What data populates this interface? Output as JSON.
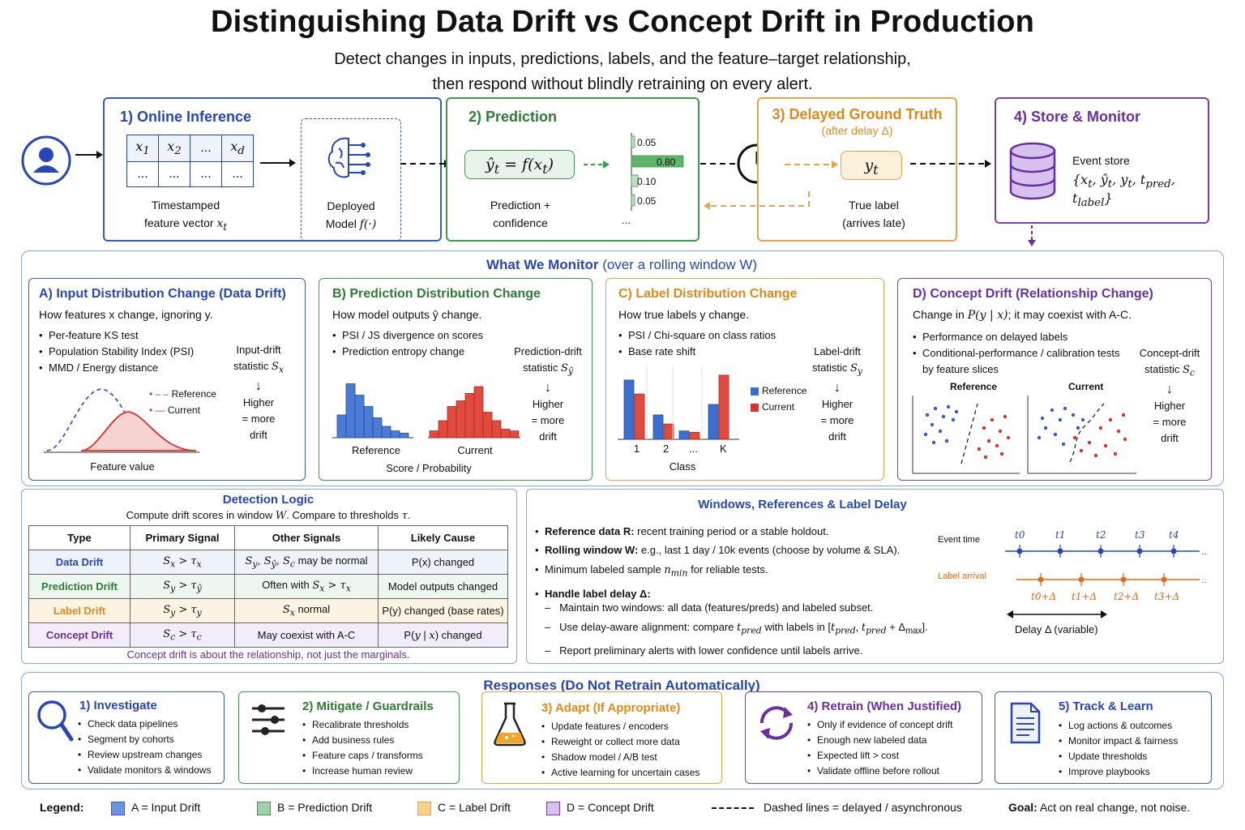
{
  "title": "Distinguishing Data Drift vs Concept Drift in Production",
  "subtitle_line1": "Detect changes in inputs, predictions, labels, and the feature–target relationship,",
  "subtitle_line2": "then respond without blindly retraining on every alert.",
  "colors": {
    "blue": "#3a5bc7",
    "green": "#3f9a4e",
    "orange": "#e8a44a",
    "purple": "#7a3fb0",
    "red": "#d9342b"
  },
  "pipeline": {
    "online": {
      "title": "1) Online Inference",
      "headers": [
        "x1",
        "x2",
        "...",
        "xd"
      ],
      "row": [
        "...",
        "...",
        "...",
        "..."
      ],
      "caption1": "Timestamped",
      "caption2": "feature vector",
      "caption_var": "xt",
      "model_caption1": "Deployed",
      "model_caption2": "Model",
      "model_var": "f(·)"
    },
    "prediction": {
      "title": "2) Prediction",
      "formula": "ŷt = f(xt)",
      "caption1": "Prediction +",
      "caption2": "confidence",
      "bars": [
        0.05,
        0.8,
        0.1,
        0.05
      ],
      "bar_labels": [
        "0.05",
        "0.80",
        "0.10",
        "0.05"
      ],
      "ellipsis": "..."
    },
    "ground_truth": {
      "title": "3) Delayed Ground Truth",
      "subtitle": "(after delay Δ)",
      "label": "yt",
      "caption1": "True label",
      "caption2": "(arrives late)"
    },
    "store": {
      "title": "4) Store & Monitor",
      "caption": "Event store",
      "set": "{xt, ŷt, yt, tpred, tlabel}"
    }
  },
  "monitor": {
    "title": "What We Monitor",
    "title_suffix": "(over a rolling window W)",
    "panels": [
      {
        "title": "A) Input Distribution Change (Data Drift)",
        "desc": "How features x change, ignoring y.",
        "bullets": [
          "Per-feature KS test",
          "Population Stability Index (PSI)",
          "MMD / Energy distance"
        ],
        "stat1": "Input-drift",
        "stat2": "statistic Sx",
        "higher": [
          "Higher",
          "= more",
          "drift"
        ],
        "legend": [
          "Reference",
          "Current"
        ],
        "xlabel": "Feature value"
      },
      {
        "title": "B) Prediction Distribution Change",
        "desc": "How model outputs ŷ change.",
        "bullets": [
          "PSI / JS divergence on scores",
          "Prediction entropy change"
        ],
        "stat1": "Prediction-drift",
        "stat2": "statistic Sŷ",
        "higher": [
          "Higher",
          "= more",
          "drift"
        ],
        "hist_labels": [
          "Reference",
          "Current"
        ],
        "xlabel": "Score / Probability",
        "ref_hist": [
          0.4,
          0.95,
          0.75,
          0.55,
          0.35,
          0.2,
          0.12,
          0.08
        ],
        "cur_hist": [
          0.12,
          0.3,
          0.55,
          0.65,
          0.78,
          0.9,
          0.45,
          0.3,
          0.15,
          0.12
        ]
      },
      {
        "title": "C) Label Distribution Change",
        "desc": "How true labels y change.",
        "bullets": [
          "PSI / Chi-square on class ratios",
          "Base rate shift"
        ],
        "stat1": "Label-drift",
        "stat2": "statistic Sy",
        "higher": [
          "Higher",
          "= more",
          "drift"
        ],
        "legend": [
          "Reference",
          "Current"
        ],
        "classes": [
          "1",
          "2",
          "...",
          "K"
        ],
        "xlabel": "Class",
        "ref_values": [
          0.85,
          0.35,
          0.12,
          0.5
        ],
        "cur_values": [
          0.65,
          0.22,
          0.1,
          0.92
        ]
      },
      {
        "title": "D) Concept Drift (Relationship Change)",
        "desc": "Change in P(y | x); it may coexist with A-C.",
        "bullets": [
          "Performance on delayed labels",
          "Conditional-performance / calibration tests by feature slices"
        ],
        "stat1": "Concept-drift",
        "stat2": "statistic Sc",
        "higher": [
          "Higher",
          "= more",
          "drift"
        ],
        "scatter_labels": [
          "Reference",
          "Current"
        ]
      }
    ]
  },
  "detection": {
    "title": "Detection Logic",
    "desc": "Compute drift scores in window W. Compare to thresholds τ.",
    "headers": [
      "Type",
      "Primary Signal",
      "Other Signals",
      "Likely Cause"
    ],
    "rows": [
      {
        "type": "Data Drift",
        "primary": "Sx > τx",
        "other": "Sy, Sŷ, Sc may be normal",
        "cause": "P(x) changed"
      },
      {
        "type": "Prediction Drift",
        "primary": "Sŷ > τŷ",
        "other": "Often with Sx > τx",
        "cause": "Model outputs changed"
      },
      {
        "type": "Label Drift",
        "primary": "Sy > τy",
        "other": "Sx normal",
        "cause": "P(y) changed (base rates)"
      },
      {
        "type": "Concept Drift",
        "primary": "Sc > τc",
        "other": "May coexist with A-C",
        "cause": "P(y | x) changed"
      }
    ],
    "footer": "Concept drift is about the relationship, not just the marginals."
  },
  "windows": {
    "title": "Windows, References & Label Delay",
    "b1_bold": "Reference data R:",
    "b1": " recent training period or a stable holdout.",
    "b2_bold": "Rolling window W:",
    "b2": " e.g., last 1 day / 10k events (choose by volume & SLA).",
    "b3": "Minimum labeled sample nmin for reliable tests.",
    "b4_bold": "Handle label delay Δ:",
    "sub": [
      "Maintain two windows: all data (features/preds) and labeled subset.",
      "Use delay-aware alignment: compare tpred with labels in [tpred, tpred + Δmax].",
      "Report preliminary alerts with lower confidence until labels arrive."
    ],
    "event_time": "Event time",
    "label_arrival": "Label arrival",
    "ticks": [
      "t0",
      "t1",
      "t2",
      "t3",
      "t4"
    ],
    "label_ticks": [
      "t0+Δ",
      "t1+Δ",
      "t2+Δ",
      "t3+Δ"
    ],
    "delay": "Delay Δ (variable)",
    "dots": "..."
  },
  "responses": {
    "title": "Responses (Do Not Retrain Automatically)",
    "cards": [
      {
        "title": "1) Investigate",
        "icon": "magnifier",
        "items": [
          "Check data pipelines",
          "Segment by cohorts",
          "Review upstream changes",
          "Validate monitors & windows"
        ]
      },
      {
        "title": "2) Mitigate / Guardrails",
        "icon": "sliders",
        "items": [
          "Recalibrate thresholds",
          "Add business rules",
          "Feature caps / transforms",
          "Increase human review"
        ]
      },
      {
        "title": "3) Adapt (If Appropriate)",
        "icon": "flask",
        "items": [
          "Update features / encoders",
          "Reweight or collect more data",
          "Shadow model / A/B test",
          "Active learning for uncertain cases"
        ]
      },
      {
        "title": "4) Retrain (When Justified)",
        "icon": "refresh",
        "items": [
          "Only if evidence of concept drift",
          "Enough new labeled data",
          "Expected lift > cost",
          "Validate offline before rollout"
        ]
      },
      {
        "title": "5) Track & Learn",
        "icon": "document",
        "items": [
          "Log actions & outcomes",
          "Monitor impact & fairness",
          "Update thresholds",
          "Improve playbooks"
        ]
      }
    ]
  },
  "legend": {
    "label": "Legend:",
    "items": [
      {
        "text": "A = Input Drift",
        "color": "#6d93e0",
        "border": "#3a5bc7"
      },
      {
        "text": "B = Prediction Drift",
        "color": "#9fd0a6",
        "border": "#3f9a4e"
      },
      {
        "text": "C = Label Drift",
        "color": "#f9cf8c",
        "border": "#e8a44a"
      },
      {
        "text": "D = Concept Drift",
        "color": "#d6c2ec",
        "border": "#7a3fb0"
      }
    ],
    "dashed": "Dashed lines = delayed / asynchronous",
    "goal_label": "Goal:",
    "goal": "Act on real change, not noise."
  }
}
